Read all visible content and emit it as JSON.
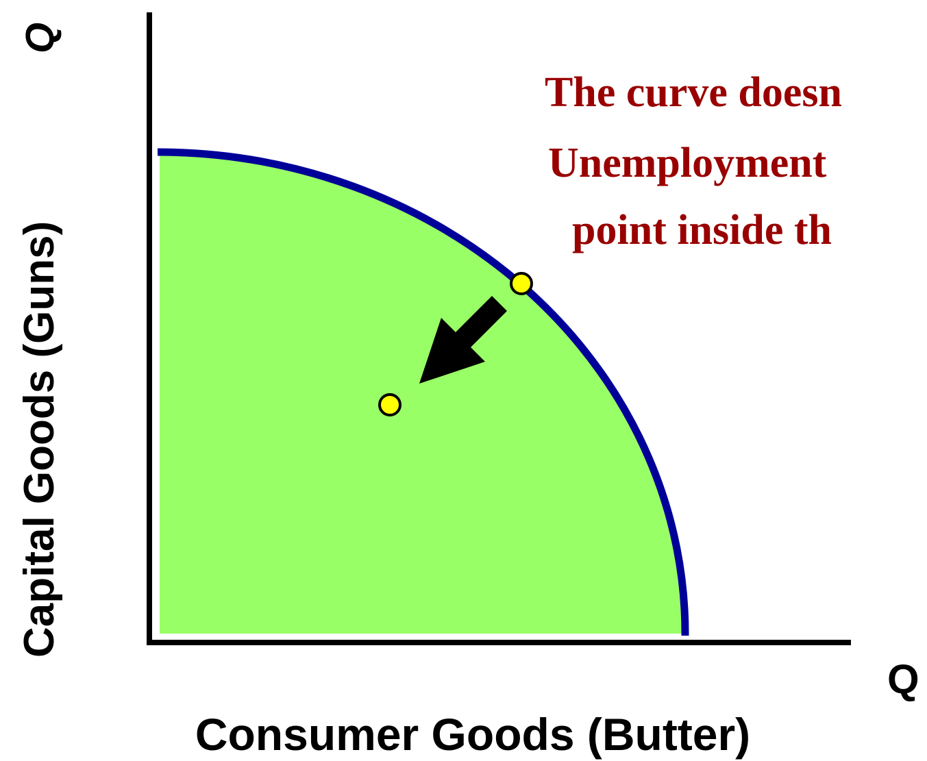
{
  "axes": {
    "y_label": "Capital Goods (Guns)",
    "y_symbol": "Q",
    "x_label": "Consumer Goods (Butter)",
    "x_symbol": "Q"
  },
  "annotation": {
    "lines": [
      "The curve doesn",
      "Unemployment",
      "point inside th"
    ]
  }
}
